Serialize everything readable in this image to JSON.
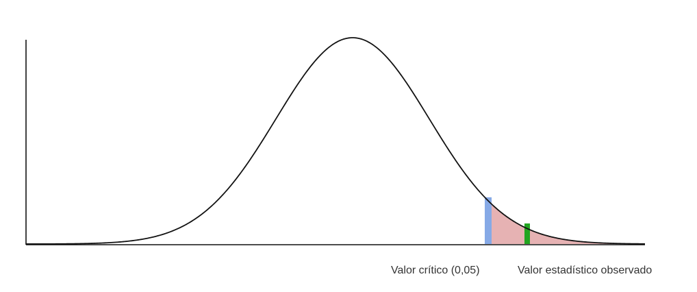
{
  "colors": {
    "background": "#ffffff",
    "curve": "#111111",
    "critical_marker": "#86a9e6",
    "rejection_region": "#e6b2b3",
    "observed_marker": "#23a521"
  },
  "labels": {
    "critical_value": "Valor crítico (0,05)",
    "observed_value": "Valor estadístico observado"
  }
}
